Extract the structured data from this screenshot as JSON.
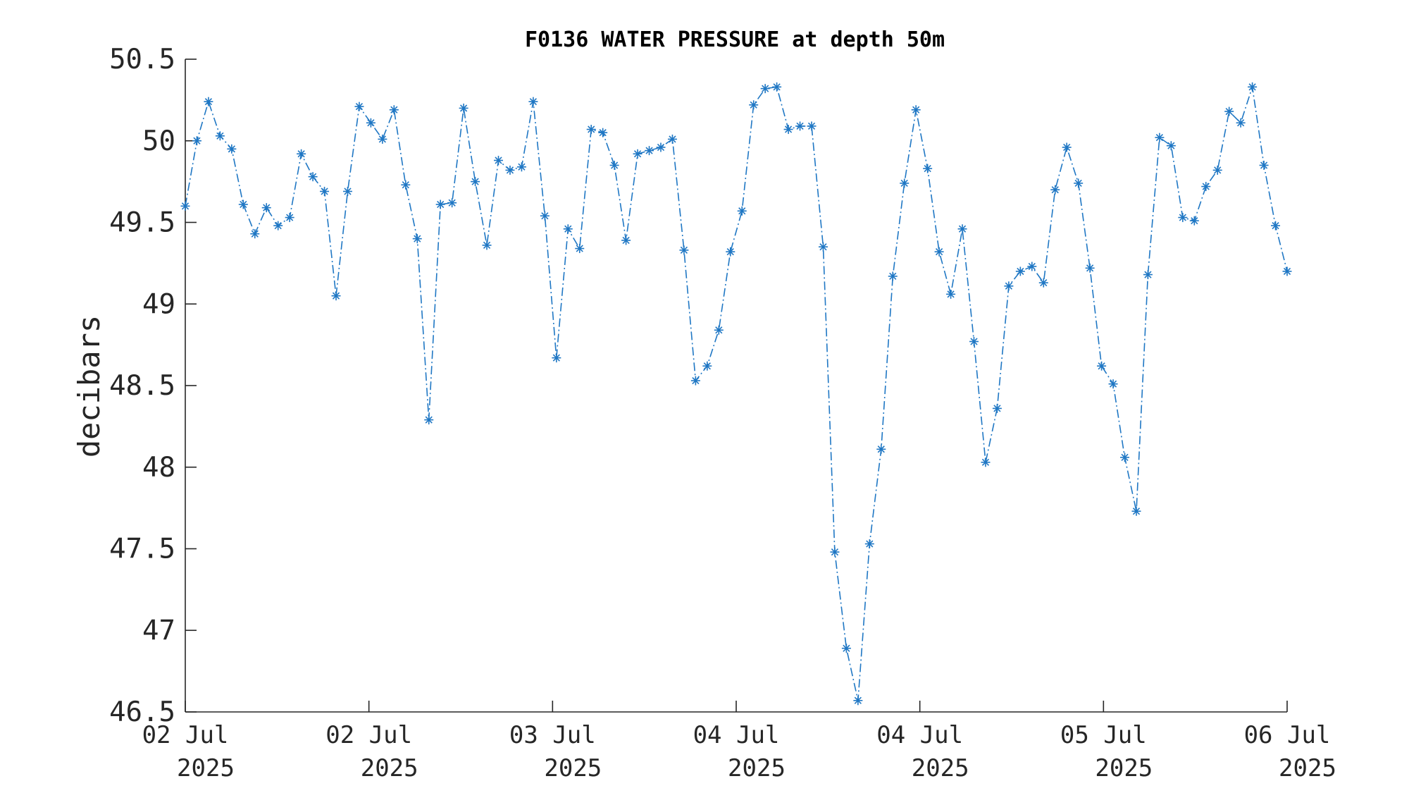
{
  "chart_data": {
    "type": "line",
    "title": "F0136 WATER PRESSURE at depth 50m",
    "ylabel": "decibars",
    "xlabel": "",
    "ylim": [
      46.5,
      50.5
    ],
    "yticks": [
      "50.5",
      "50",
      "49.5",
      "49",
      "48.5",
      "48",
      "47.5",
      "47",
      "46.5"
    ],
    "xticks": [
      {
        "day": "02 Jul",
        "year": "2025"
      },
      {
        "day": "02 Jul",
        "year": "2025"
      },
      {
        "day": "03 Jul",
        "year": "2025"
      },
      {
        "day": "04 Jul",
        "year": "2025"
      },
      {
        "day": "04 Jul",
        "year": "2025"
      },
      {
        "day": "05 Jul",
        "year": "2025"
      },
      {
        "day": "06 Jul",
        "year": "2025"
      }
    ],
    "line_style": "dash-dot",
    "marker": "asterisk",
    "color": "#1f77c4",
    "grid": false,
    "series": [
      {
        "values": [
          49.6,
          50.0,
          50.24,
          50.03,
          49.95,
          49.61,
          49.43,
          49.59,
          49.48,
          49.53,
          49.92,
          49.78,
          49.69,
          49.05,
          49.69,
          50.21,
          50.11,
          50.01,
          50.19,
          49.73,
          49.4,
          48.29,
          49.61,
          49.62,
          50.2,
          49.75,
          49.36,
          49.88,
          49.82,
          49.84,
          50.24,
          49.54,
          48.67,
          49.46,
          49.34,
          50.07,
          50.05,
          49.85,
          49.39,
          49.92,
          49.94,
          49.96,
          50.01,
          49.33,
          48.53,
          48.62,
          48.84,
          49.32,
          49.57,
          50.22,
          50.32,
          50.33,
          50.07,
          50.09,
          50.09,
          49.35,
          47.48,
          46.89,
          46.57,
          47.53,
          48.11,
          49.17,
          49.74,
          50.19,
          49.83,
          49.32,
          49.06,
          49.46,
          48.77,
          48.03,
          48.36,
          49.11,
          49.2,
          49.23,
          49.13,
          49.7,
          49.96,
          49.74,
          49.22,
          48.62,
          48.51,
          48.06,
          47.73,
          49.18,
          50.02,
          49.97,
          49.53,
          49.51,
          49.72,
          49.82,
          50.18,
          50.11,
          50.33,
          49.85,
          49.48,
          49.2
        ]
      }
    ]
  }
}
